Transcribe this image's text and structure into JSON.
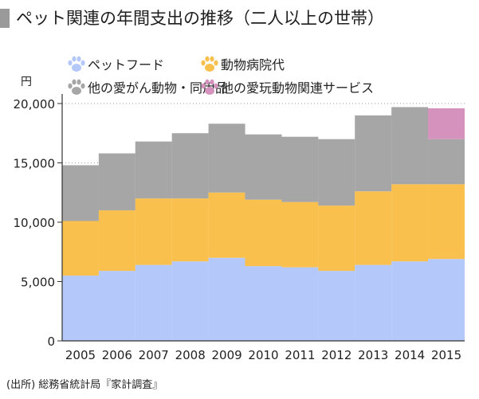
{
  "title": "ペット関連の年間支出の推移（二人以上の世帯）",
  "source": "(出所) 総務省統計局『家計調査』",
  "colors": {
    "title_mark": "#9a9a9a",
    "pet_food": "#b4c8fa",
    "vet": "#f9c04e",
    "other_animals": "#a6a6a6",
    "pet_toys_services": "#d492bd",
    "axis": "#333333",
    "grid": "#999999"
  },
  "chart_data": {
    "type": "bar",
    "stacked": true,
    "ylabel": "円",
    "ylim": [
      0,
      20000
    ],
    "yticks": [
      0,
      5000,
      10000,
      15000,
      20000
    ],
    "ytick_labels": [
      "0",
      "5,000",
      "10,000",
      "15,000",
      "20,000"
    ],
    "grid": true,
    "legend_position": "top",
    "categories": [
      "2005",
      "2006",
      "2007",
      "2008",
      "2009",
      "2010",
      "2011",
      "2012",
      "2013",
      "2014",
      "2015"
    ],
    "series": [
      {
        "name": "ペットフード",
        "color_key": "pet_food",
        "icon": "paw-icon",
        "values": [
          5500,
          5900,
          6400,
          6700,
          7000,
          6300,
          6200,
          5900,
          6400,
          6700,
          6900
        ]
      },
      {
        "name": "動物病院代",
        "color_key": "vet",
        "icon": "paw-icon",
        "values": [
          4600,
          5100,
          5600,
          5300,
          5500,
          5600,
          5500,
          5500,
          6200,
          6500,
          6300
        ]
      },
      {
        "name": "他の愛がん動物・同用品",
        "color_key": "other_animals",
        "icon": "paw-icon",
        "values": [
          4700,
          4800,
          4800,
          5500,
          5800,
          5500,
          5500,
          5600,
          6400,
          6500,
          3800
        ]
      },
      {
        "name": "他の愛玩動物関連サービス",
        "color_key": "pet_toys_services",
        "icon": "paw-icon",
        "values": [
          0,
          0,
          0,
          0,
          0,
          0,
          0,
          0,
          0,
          0,
          2600
        ]
      }
    ]
  }
}
